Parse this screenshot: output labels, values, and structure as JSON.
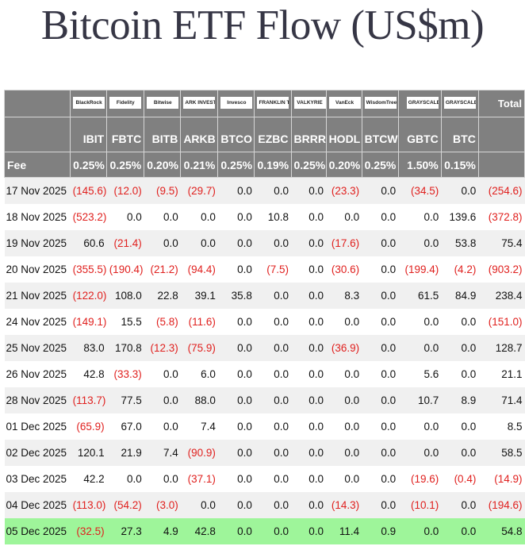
{
  "title": "Bitcoin ETF Flow (US$m)",
  "colors": {
    "negative": "#e0201e",
    "header_bg": "#808080",
    "highlight_row": "#9ef59a"
  },
  "columns": [
    {
      "logo": "BlackRock",
      "ticker": "IBIT",
      "fee": "0.25%"
    },
    {
      "logo": "Fidelity",
      "ticker": "FBTC",
      "fee": "0.25%"
    },
    {
      "logo": "Bitwise",
      "ticker": "BITB",
      "fee": "0.20%"
    },
    {
      "logo": "ARK INVEST",
      "ticker": "ARKB",
      "fee": "0.21%"
    },
    {
      "logo": "Invesco",
      "ticker": "BTCO",
      "fee": "0.25%"
    },
    {
      "logo": "FRANKLIN TEMPLETON",
      "ticker": "EZBC",
      "fee": "0.19%"
    },
    {
      "logo": "VALKYRIE",
      "ticker": "BRRR",
      "fee": "0.25%"
    },
    {
      "logo": "VanEck",
      "ticker": "HODL",
      "fee": "0.20%"
    },
    {
      "logo": "WisdomTree",
      "ticker": "BTCW",
      "fee": "0.25%"
    },
    {
      "logo": "GRAYSCALE",
      "ticker": "GBTC",
      "fee": "1.50%"
    },
    {
      "logo": "GRAYSCALE",
      "ticker": "BTC",
      "fee": "0.15%"
    }
  ],
  "total_label": "Total",
  "fee_label": "Fee",
  "rows": [
    {
      "date": "17 Nov 2025",
      "values": [
        "(145.6)",
        "(12.0)",
        "(9.5)",
        "(29.7)",
        "0.0",
        "0.0",
        "0.0",
        "(23.3)",
        "0.0",
        "(34.5)",
        "0.0"
      ],
      "total": "(254.6)"
    },
    {
      "date": "18 Nov 2025",
      "values": [
        "(523.2)",
        "0.0",
        "0.0",
        "0.0",
        "0.0",
        "10.8",
        "0.0",
        "0.0",
        "0.0",
        "0.0",
        "139.6"
      ],
      "total": "(372.8)"
    },
    {
      "date": "19 Nov 2025",
      "values": [
        "60.6",
        "(21.4)",
        "0.0",
        "0.0",
        "0.0",
        "0.0",
        "0.0",
        "(17.6)",
        "0.0",
        "0.0",
        "53.8"
      ],
      "total": "75.4"
    },
    {
      "date": "20 Nov 2025",
      "values": [
        "(355.5)",
        "(190.4)",
        "(21.2)",
        "(94.4)",
        "0.0",
        "(7.5)",
        "0.0",
        "(30.6)",
        "0.0",
        "(199.4)",
        "(4.2)"
      ],
      "total": "(903.2)"
    },
    {
      "date": "21 Nov 2025",
      "values": [
        "(122.0)",
        "108.0",
        "22.8",
        "39.1",
        "35.8",
        "0.0",
        "0.0",
        "8.3",
        "0.0",
        "61.5",
        "84.9"
      ],
      "total": "238.4"
    },
    {
      "date": "24 Nov 2025",
      "values": [
        "(149.1)",
        "15.5",
        "(5.8)",
        "(11.6)",
        "0.0",
        "0.0",
        "0.0",
        "0.0",
        "0.0",
        "0.0",
        "0.0"
      ],
      "total": "(151.0)"
    },
    {
      "date": "25 Nov 2025",
      "values": [
        "83.0",
        "170.8",
        "(12.3)",
        "(75.9)",
        "0.0",
        "0.0",
        "0.0",
        "(36.9)",
        "0.0",
        "0.0",
        "0.0"
      ],
      "total": "128.7"
    },
    {
      "date": "26 Nov 2025",
      "values": [
        "42.8",
        "(33.3)",
        "0.0",
        "6.0",
        "0.0",
        "0.0",
        "0.0",
        "0.0",
        "0.0",
        "5.6",
        "0.0"
      ],
      "total": "21.1"
    },
    {
      "date": "28 Nov 2025",
      "values": [
        "(113.7)",
        "77.5",
        "0.0",
        "88.0",
        "0.0",
        "0.0",
        "0.0",
        "0.0",
        "0.0",
        "10.7",
        "8.9"
      ],
      "total": "71.4"
    },
    {
      "date": "01 Dec 2025",
      "values": [
        "(65.9)",
        "67.0",
        "0.0",
        "7.4",
        "0.0",
        "0.0",
        "0.0",
        "0.0",
        "0.0",
        "0.0",
        "0.0"
      ],
      "total": "8.5"
    },
    {
      "date": "02 Dec 2025",
      "values": [
        "120.1",
        "21.9",
        "7.4",
        "(90.9)",
        "0.0",
        "0.0",
        "0.0",
        "0.0",
        "0.0",
        "0.0",
        "0.0"
      ],
      "total": "58.5"
    },
    {
      "date": "03 Dec 2025",
      "values": [
        "42.2",
        "0.0",
        "0.0",
        "(37.1)",
        "0.0",
        "0.0",
        "0.0",
        "0.0",
        "0.0",
        "(19.6)",
        "(0.4)"
      ],
      "total": "(14.9)"
    },
    {
      "date": "04 Dec 2025",
      "values": [
        "(113.0)",
        "(54.2)",
        "(3.0)",
        "0.0",
        "0.0",
        "0.0",
        "0.0",
        "(14.3)",
        "0.0",
        "(10.1)",
        "0.0"
      ],
      "total": "(194.6)"
    },
    {
      "date": "05 Dec 2025",
      "values": [
        "(32.5)",
        "27.3",
        "4.9",
        "42.8",
        "0.0",
        "0.0",
        "0.0",
        "11.4",
        "0.9",
        "0.0",
        "0.0"
      ],
      "total": "54.8",
      "highlighted": true
    }
  ]
}
